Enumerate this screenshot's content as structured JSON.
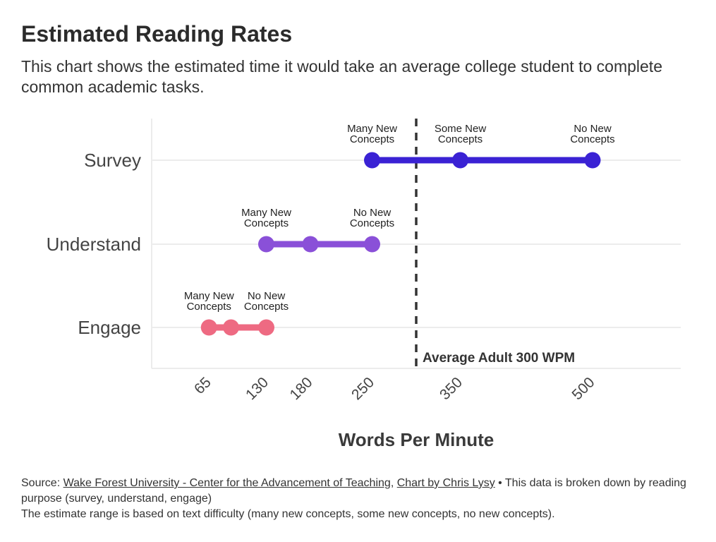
{
  "title": "Estimated Reading Rates",
  "subtitle": "This chart shows the estimated time it would take an average college student to complete common academic tasks.",
  "chart_data": {
    "type": "dot-range",
    "xlabel": "Words Per Minute",
    "xlim": [
      0,
      600
    ],
    "x_ticks": [
      65,
      130,
      180,
      250,
      350,
      500
    ],
    "categories": [
      "Survey",
      "Understand",
      "Engage"
    ],
    "series": [
      {
        "category": "Survey",
        "color": "#3a22d4",
        "points": [
          250,
          350,
          500
        ],
        "labels": [
          {
            "x": 250,
            "line1": "Many New",
            "line2": "Concepts"
          },
          {
            "x": 350,
            "line1": "Some New",
            "line2": "Concepts"
          },
          {
            "x": 500,
            "line1": "No New",
            "line2": "Concepts"
          }
        ]
      },
      {
        "category": "Understand",
        "color": "#8a50d8",
        "points": [
          130,
          180,
          250
        ],
        "labels": [
          {
            "x": 130,
            "line1": "Many New",
            "line2": "Concepts"
          },
          {
            "x": 250,
            "line1": "No New",
            "line2": "Concepts"
          }
        ]
      },
      {
        "category": "Engage",
        "color": "#ee6a82",
        "points": [
          65,
          90,
          130
        ],
        "labels": [
          {
            "x": 65,
            "line1": "Many New",
            "line2": "Concepts"
          },
          {
            "x": 130,
            "line1": "No New",
            "line2": "Concepts"
          }
        ]
      }
    ],
    "reference_line": {
      "x": 300,
      "label": "Average Adult 300 WPM",
      "color": "#333333"
    }
  },
  "source": {
    "prefix": "Source: ",
    "link1": "Wake Forest University - Center for the Advancement of Teaching",
    "sep": ", ",
    "link2": "Chart by Chris Lysy",
    "rest": " • This data is broken down by reading purpose (survey, understand, engage)",
    "line2": "The estimate range is based on text difficulty (many new concepts, some new concepts, no new concepts)."
  }
}
